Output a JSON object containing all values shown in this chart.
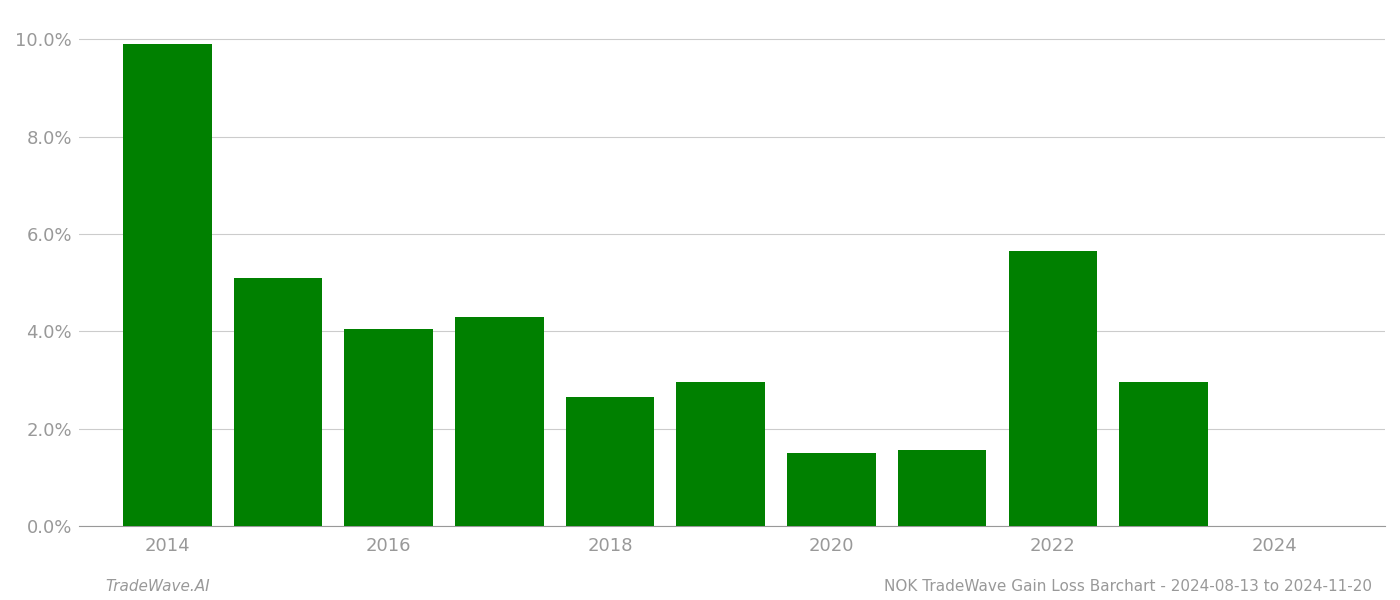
{
  "years": [
    2014,
    2015,
    2016,
    2017,
    2018,
    2019,
    2020,
    2021,
    2022,
    2023
  ],
  "values": [
    0.099,
    0.051,
    0.0405,
    0.043,
    0.0265,
    0.0295,
    0.015,
    0.0155,
    0.0565,
    0.0295
  ],
  "bar_color": "#008000",
  "background_color": "#ffffff",
  "ylim": [
    0,
    0.105
  ],
  "yticks": [
    0.0,
    0.02,
    0.04,
    0.06,
    0.08,
    0.1
  ],
  "xlabel": "",
  "ylabel": "",
  "title": "",
  "footer_left": "TradeWave.AI",
  "footer_right": "NOK TradeWave Gain Loss Barchart - 2024-08-13 to 2024-11-20",
  "grid_color": "#cccccc",
  "tick_color": "#999999",
  "footer_fontsize": 11,
  "bar_width": 0.8,
  "xlim_left": 2013.2,
  "xlim_right": 2025.0,
  "xticks": [
    2014,
    2016,
    2018,
    2020,
    2022,
    2024
  ],
  "xtick_labels": [
    "2014",
    "2016",
    "2018",
    "2020",
    "2022",
    "2024"
  ]
}
